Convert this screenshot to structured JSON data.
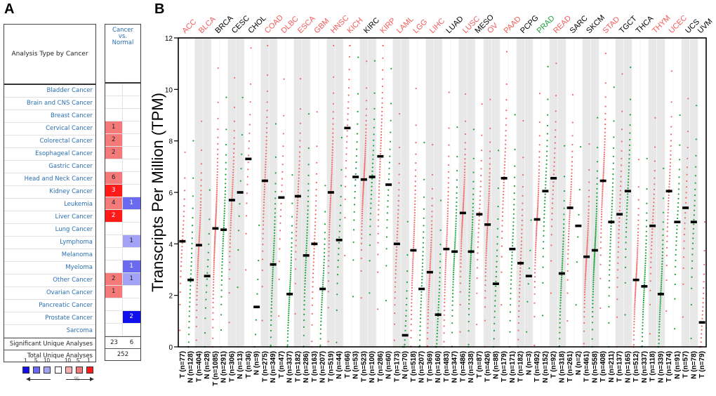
{
  "panels": {
    "a_letter": "A",
    "b_letter": "B"
  },
  "table": {
    "header_left": "Analysis Type by Cancer",
    "header_right": "Cancer vs. Normal",
    "header_right_lines": [
      "Cancer",
      "vs.",
      "Normal"
    ],
    "rows": [
      {
        "label": "Bladder Cancer",
        "up": "",
        "down": ""
      },
      {
        "label": "Brain and CNS Cancer",
        "up": "",
        "down": ""
      },
      {
        "label": "Breast Cancer",
        "up": "",
        "down": ""
      },
      {
        "label": "Cervical Cancer",
        "up": "1",
        "down": ""
      },
      {
        "label": "Colorectal Cancer",
        "up": "2",
        "down": ""
      },
      {
        "label": "Esophageal Cancer",
        "up": "2",
        "down": ""
      },
      {
        "label": "Gastric Cancer",
        "up": "",
        "down": ""
      },
      {
        "label": "Head and Neck Cancer",
        "up": "6",
        "down": ""
      },
      {
        "label": "Kidney Cancer",
        "up": "3",
        "down": ""
      },
      {
        "label": "Leukemia",
        "up": "4",
        "down": "1"
      },
      {
        "label": "Liver Cancer",
        "up": "2",
        "down": ""
      },
      {
        "label": "Lung Cancer",
        "up": "",
        "down": ""
      },
      {
        "label": "Lymphoma",
        "up": "",
        "down": "1"
      },
      {
        "label": "Melanoma",
        "up": "",
        "down": ""
      },
      {
        "label": "Myeloma",
        "up": "",
        "down": "1"
      },
      {
        "label": "Other Cancer",
        "up": "2",
        "down": "1"
      },
      {
        "label": "Ovarian Cancer",
        "up": "1",
        "down": ""
      },
      {
        "label": "Pancreatic Cancer",
        "up": "",
        "down": ""
      },
      {
        "label": "Prostate Cancer",
        "up": "",
        "down": "2"
      },
      {
        "label": "Sarcoma",
        "up": "",
        "down": ""
      }
    ],
    "cell_colors": {
      "Cervical Cancer": [
        "#f47a7a",
        null
      ],
      "Colorectal Cancer": [
        "#f47a7a",
        null
      ],
      "Esophageal Cancer": [
        "#f47a7a",
        null
      ],
      "Head and Neck Cancer": [
        "#f47a7a",
        null
      ],
      "Kidney Cancer": [
        "#ff1a1a",
        null
      ],
      "Leukemia": [
        "#f47a7a",
        "#6a6af0"
      ],
      "Liver Cancer": [
        "#ff1a1a",
        null
      ],
      "Lymphoma": [
        null,
        "#a3a3f5"
      ],
      "Myeloma": [
        null,
        "#6a6af0"
      ],
      "Other Cancer": [
        "#f47a7a",
        "#a3a3f5"
      ],
      "Ovarian Cancer": [
        "#f47a7a",
        null
      ],
      "Prostate Cancer": [
        null,
        "#1010ee"
      ]
    },
    "significant_label": "Significant Unique Analyses",
    "significant_up": "23",
    "significant_down": "6",
    "total_label": "Total Unique Analyses",
    "total_value": "252"
  },
  "legend": {
    "numbers": [
      "1",
      "5",
      "10",
      "10",
      "5",
      "1"
    ],
    "swatches": [
      "#1010ee",
      "#6a6af0",
      "#a3a3f5",
      "#ffffff",
      "#f7b0b0",
      "#f47a7a",
      "#ff1a1a"
    ],
    "unit": "%"
  },
  "chart_data": {
    "type": "scatter",
    "title": "",
    "ylabel": "Transcripts Per Million (TPM)",
    "xlabel": "",
    "ylim": [
      0,
      12
    ],
    "yticks": [
      0,
      2,
      4,
      6,
      8,
      10,
      12
    ],
    "colors": {
      "tumor": "#f26a6a",
      "normal": "#1aa33a",
      "median": "#000000",
      "label_up": "#f25a5a",
      "label_down": "#1aa33a",
      "label_neutral": "#000000",
      "band": "#e8e8e8"
    },
    "cancers": [
      {
        "name": "ACC",
        "status": "up",
        "groups": [
          {
            "type": "T",
            "n": 77,
            "median": 4.1
          },
          {
            "type": "N",
            "n": 128,
            "median": 2.6
          }
        ]
      },
      {
        "name": "BLCA",
        "status": "up",
        "groups": [
          {
            "type": "T",
            "n": 404,
            "median": 3.95
          },
          {
            "type": "N",
            "n": 28,
            "median": 2.75
          }
        ]
      },
      {
        "name": "BRCA",
        "status": "neutral",
        "groups": [
          {
            "type": "T",
            "n": 1085,
            "median": 4.6
          },
          {
            "type": "N",
            "n": 291,
            "median": 4.55
          }
        ]
      },
      {
        "name": "CESC",
        "status": "neutral",
        "groups": [
          {
            "type": "T",
            "n": 306,
            "median": 5.7
          },
          {
            "type": "N",
            "n": 13,
            "median": 6.0
          }
        ]
      },
      {
        "name": "CHOL",
        "status": "neutral",
        "groups": [
          {
            "type": "T",
            "n": 36,
            "median": 7.3
          },
          {
            "type": "N",
            "n": 9,
            "median": 1.55
          }
        ]
      },
      {
        "name": "COAD",
        "status": "up",
        "groups": [
          {
            "type": "T",
            "n": 275,
            "median": 6.45
          },
          {
            "type": "N",
            "n": 349,
            "median": 3.2
          }
        ]
      },
      {
        "name": "DLBC",
        "status": "up",
        "groups": [
          {
            "type": "T",
            "n": 47,
            "median": 5.8
          },
          {
            "type": "N",
            "n": 337,
            "median": 2.05
          }
        ]
      },
      {
        "name": "ESCA",
        "status": "up",
        "groups": [
          {
            "type": "T",
            "n": 182,
            "median": 5.85
          },
          {
            "type": "N",
            "n": 286,
            "median": 3.55
          }
        ]
      },
      {
        "name": "GBM",
        "status": "up",
        "groups": [
          {
            "type": "T",
            "n": 163,
            "median": 4.0
          },
          {
            "type": "N",
            "n": 207,
            "median": 2.25
          }
        ]
      },
      {
        "name": "HNSC",
        "status": "up",
        "groups": [
          {
            "type": "T",
            "n": 519,
            "median": 6.0
          },
          {
            "type": "N",
            "n": 44,
            "median": 4.15
          }
        ]
      },
      {
        "name": "KICH",
        "status": "up",
        "groups": [
          {
            "type": "T",
            "n": 66,
            "median": 8.5
          },
          {
            "type": "N",
            "n": 53,
            "median": 6.6
          }
        ]
      },
      {
        "name": "KIRC",
        "status": "neutral",
        "groups": [
          {
            "type": "T",
            "n": 523,
            "median": 6.5
          },
          {
            "type": "N",
            "n": 100,
            "median": 6.6
          }
        ]
      },
      {
        "name": "KIRP",
        "status": "up",
        "groups": [
          {
            "type": "T",
            "n": 286,
            "median": 7.4
          },
          {
            "type": "N",
            "n": 60,
            "median": 6.3
          }
        ]
      },
      {
        "name": "LAML",
        "status": "up",
        "groups": [
          {
            "type": "T",
            "n": 173,
            "median": 4.0
          },
          {
            "type": "N",
            "n": 70,
            "median": 0.45
          }
        ]
      },
      {
        "name": "LGG",
        "status": "up",
        "groups": [
          {
            "type": "T",
            "n": 518,
            "median": 3.75
          },
          {
            "type": "N",
            "n": 207,
            "median": 2.25
          }
        ]
      },
      {
        "name": "LIHC",
        "status": "up",
        "groups": [
          {
            "type": "T",
            "n": 369,
            "median": 2.9
          },
          {
            "type": "N",
            "n": 160,
            "median": 1.25
          }
        ]
      },
      {
        "name": "LUAD",
        "status": "neutral",
        "groups": [
          {
            "type": "T",
            "n": 483,
            "median": 3.8
          },
          {
            "type": "N",
            "n": 347,
            "median": 3.7
          }
        ]
      },
      {
        "name": "LUSC",
        "status": "up",
        "groups": [
          {
            "type": "T",
            "n": 486,
            "median": 5.2
          },
          {
            "type": "N",
            "n": 338,
            "median": 3.7
          }
        ]
      },
      {
        "name": "MESO",
        "status": "neutral",
        "groups": [
          {
            "type": "T",
            "n": 87,
            "median": 5.15
          }
        ]
      },
      {
        "name": "OV",
        "status": "up",
        "groups": [
          {
            "type": "T",
            "n": 426,
            "median": 4.75
          },
          {
            "type": "N",
            "n": 88,
            "median": 2.45
          }
        ]
      },
      {
        "name": "PAAD",
        "status": "up",
        "groups": [
          {
            "type": "T",
            "n": 179,
            "median": 6.55
          },
          {
            "type": "N",
            "n": 171,
            "median": 3.8
          }
        ]
      },
      {
        "name": "PCPG",
        "status": "neutral",
        "groups": [
          {
            "type": "T",
            "n": 182,
            "median": 3.25
          },
          {
            "type": "N",
            "n": 3,
            "median": 2.75
          }
        ]
      },
      {
        "name": "PRAD",
        "status": "down",
        "groups": [
          {
            "type": "T",
            "n": 492,
            "median": 4.95
          },
          {
            "type": "N",
            "n": 152,
            "median": 6.05
          }
        ]
      },
      {
        "name": "READ",
        "status": "up",
        "groups": [
          {
            "type": "T",
            "n": 92,
            "median": 6.55
          },
          {
            "type": "N",
            "n": 318,
            "median": 2.85
          }
        ]
      },
      {
        "name": "SARC",
        "status": "neutral",
        "groups": [
          {
            "type": "T",
            "n": 261,
            "median": 5.4
          },
          {
            "type": "N",
            "n": 2,
            "median": 4.7
          }
        ]
      },
      {
        "name": "SKCM",
        "status": "neutral",
        "groups": [
          {
            "type": "T",
            "n": 461,
            "median": 3.5
          },
          {
            "type": "N",
            "n": 558,
            "median": 3.75
          }
        ]
      },
      {
        "name": "STAD",
        "status": "up",
        "groups": [
          {
            "type": "T",
            "n": 408,
            "median": 6.45
          },
          {
            "type": "N",
            "n": 211,
            "median": 4.85
          }
        ]
      },
      {
        "name": "TGCT",
        "status": "neutral",
        "groups": [
          {
            "type": "T",
            "n": 137,
            "median": 5.15
          },
          {
            "type": "N",
            "n": 165,
            "median": 6.05
          }
        ]
      },
      {
        "name": "THCA",
        "status": "neutral",
        "groups": [
          {
            "type": "T",
            "n": 512,
            "median": 2.6
          },
          {
            "type": "N",
            "n": 337,
            "median": 2.35
          }
        ]
      },
      {
        "name": "THYM",
        "status": "up",
        "groups": [
          {
            "type": "T",
            "n": 118,
            "median": 4.7
          },
          {
            "type": "N",
            "n": 339,
            "median": 2.05
          }
        ]
      },
      {
        "name": "UCEC",
        "status": "up",
        "groups": [
          {
            "type": "T",
            "n": 174,
            "median": 6.05
          },
          {
            "type": "N",
            "n": 91,
            "median": 4.85
          }
        ]
      },
      {
        "name": "UCS",
        "status": "neutral",
        "groups": [
          {
            "type": "T",
            "n": 57,
            "median": 5.4
          },
          {
            "type": "N",
            "n": 78,
            "median": 4.85
          }
        ]
      },
      {
        "name": "UVM",
        "status": "neutral",
        "groups": [
          {
            "type": "T",
            "n": 79,
            "median": 0.95
          }
        ]
      }
    ]
  }
}
